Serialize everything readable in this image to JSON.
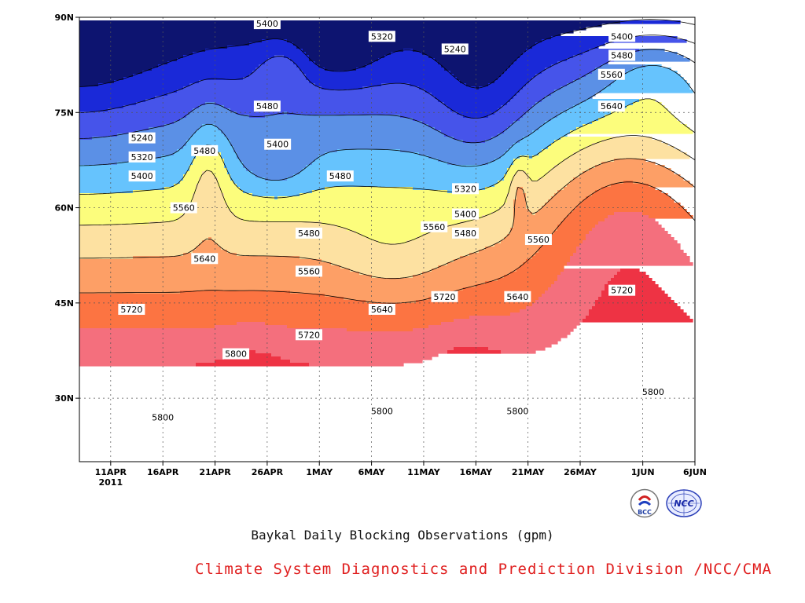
{
  "chart_data": {
    "type": "contour",
    "title": "Baykal Daily Blocking Observations (gpm)",
    "credit": "Climate System Diagnostics and Prediction Division /NCC/CMA",
    "xlabel": "",
    "ylabel": "",
    "x_ticks": [
      {
        "label": "11APR",
        "sub": "2011"
      },
      {
        "label": "16APR",
        "sub": ""
      },
      {
        "label": "21APR",
        "sub": ""
      },
      {
        "label": "26APR",
        "sub": ""
      },
      {
        "label": "1MAY",
        "sub": ""
      },
      {
        "label": "6MAY",
        "sub": ""
      },
      {
        "label": "11MAY",
        "sub": ""
      },
      {
        "label": "16MAY",
        "sub": ""
      },
      {
        "label": "21MAY",
        "sub": ""
      },
      {
        "label": "26MAY",
        "sub": ""
      },
      {
        "label": "1JUN",
        "sub": ""
      },
      {
        "label": "6JUN",
        "sub": ""
      }
    ],
    "y_ticks": [
      "90N",
      "75N",
      "60N",
      "45N",
      "30N"
    ],
    "y_range": [
      "20N",
      "90N"
    ],
    "x_range": [
      "8APR2011",
      "6JUN2011"
    ],
    "grid": true,
    "levels": [
      5240,
      5320,
      5400,
      5480,
      5560,
      5640,
      5720,
      5800
    ],
    "fill_colors": {
      "below_5240": "#0d1470",
      "5240_5320": "#1a29d8",
      "5320_5400": "#4654ea",
      "5400_5480": "#5b90e6",
      "5480_5560": "#66c3fd",
      "5560_5640": "#fcfd7c",
      "5640_5720": "#fde1a1",
      "5720_5800": "#fd9f66",
      "5800_5880": "#fc7442",
      "5880_5960": "#f46f7d",
      "above_5960": "#ee3344"
    },
    "contour_labels": [
      {
        "text": "5400",
        "date": "26APR",
        "lat": 89
      },
      {
        "text": "5320",
        "date": "7MAY",
        "lat": 87
      },
      {
        "text": "5240",
        "date": "14MAY",
        "lat": 85
      },
      {
        "text": "5400",
        "date": "30MAY",
        "lat": 87
      },
      {
        "text": "5480",
        "date": "30MAY",
        "lat": 84
      },
      {
        "text": "5560",
        "date": "29MAY",
        "lat": 81
      },
      {
        "text": "5640",
        "date": "29MAY",
        "lat": 76
      },
      {
        "text": "5480",
        "date": "26APR",
        "lat": 76
      },
      {
        "text": "5240",
        "date": "14APR",
        "lat": 71
      },
      {
        "text": "5320",
        "date": "14APR",
        "lat": 68
      },
      {
        "text": "5400",
        "date": "14APR",
        "lat": 65
      },
      {
        "text": "5480",
        "date": "20APR",
        "lat": 69
      },
      {
        "text": "5400",
        "date": "27APR",
        "lat": 70
      },
      {
        "text": "5480",
        "date": "3MAY",
        "lat": 65
      },
      {
        "text": "5320",
        "date": "15MAY",
        "lat": 63
      },
      {
        "text": "5560",
        "date": "18APR",
        "lat": 60
      },
      {
        "text": "5400",
        "date": "15MAY",
        "lat": 59
      },
      {
        "text": "5480",
        "date": "15MAY",
        "lat": 56
      },
      {
        "text": "5560",
        "date": "12MAY",
        "lat": 57
      },
      {
        "text": "5480",
        "date": "30APR",
        "lat": 56
      },
      {
        "text": "5560",
        "date": "22MAY",
        "lat": 55
      },
      {
        "text": "5640",
        "date": "20APR",
        "lat": 52
      },
      {
        "text": "5560",
        "date": "30APR",
        "lat": 50
      },
      {
        "text": "5720",
        "date": "13APR",
        "lat": 44
      },
      {
        "text": "5720",
        "date": "13MAY",
        "lat": 46
      },
      {
        "text": "5640",
        "date": "20MAY",
        "lat": 46
      },
      {
        "text": "5640",
        "date": "7MAY",
        "lat": 44
      },
      {
        "text": "5720",
        "date": "30MAY",
        "lat": 47
      },
      {
        "text": "5720",
        "date": "30APR",
        "lat": 40
      },
      {
        "text": "5800",
        "date": "23APR",
        "lat": 37
      },
      {
        "text": "5800",
        "date": "16APR",
        "lat": 27
      },
      {
        "text": "5800",
        "date": "7MAY",
        "lat": 28
      },
      {
        "text": "5800",
        "date": "20MAY",
        "lat": 28
      },
      {
        "text": "5800",
        "date": "2JUN",
        "lat": 31
      }
    ]
  },
  "logos": [
    "bcc-logo",
    "ncc-logo"
  ],
  "logo_text": {
    "bcc": "BCC",
    "ncc": "NCC"
  }
}
